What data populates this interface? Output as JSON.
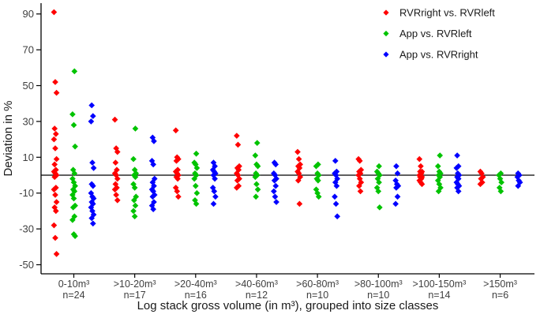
{
  "figure": {
    "background": "#ffffff",
    "axis_color": "#000000",
    "tick_text_color": "#3f3f3f",
    "title_text_color": "#1a1a1a"
  },
  "chart_data": {
    "type": "scatter",
    "title": "",
    "xlabel": "Log stack gross volume (in m³), grouped into size classes",
    "ylabel": "Deviation in %",
    "ylim": [
      -55,
      96
    ],
    "y_ticks": [
      90,
      70,
      50,
      30,
      10,
      -10,
      -30,
      -50
    ],
    "reference_line_y": 0,
    "grid": false,
    "legend_position": "top-right",
    "categories": [
      {
        "label": "0-10m³",
        "n_label": "n=24"
      },
      {
        "label": ">10-20m³",
        "n_label": "n=17"
      },
      {
        "label": ">20-40m³",
        "n_label": "n=16"
      },
      {
        "label": ">40-60m³",
        "n_label": "n=12"
      },
      {
        "label": ">60-80m³",
        "n_label": "n=10"
      },
      {
        "label": ">80-100m³",
        "n_label": "n=10"
      },
      {
        "label": ">100-150m³",
        "n_label": "n=14"
      },
      {
        "label": ">150m³",
        "n_label": "n=6"
      }
    ],
    "series": [
      {
        "name": "RVRright vs. RVRleft",
        "color": "#ff0000",
        "marker": "diamond",
        "values_by_category": [
          [
            91,
            52,
            46,
            26,
            23,
            20,
            15,
            9,
            6,
            3,
            2,
            1,
            0,
            -1,
            -7,
            -8,
            -11,
            -15,
            -18,
            -20,
            -28,
            -35,
            -44
          ],
          [
            31,
            15,
            13,
            7,
            3,
            1,
            0,
            -2,
            -5,
            -7,
            -8,
            -11,
            -14
          ],
          [
            25,
            10,
            9,
            8,
            3,
            2,
            1,
            0,
            -1,
            -2,
            -7,
            -9,
            -12
          ],
          [
            22,
            17,
            5,
            4,
            3,
            1,
            0,
            -2,
            -3,
            -6,
            -7
          ],
          [
            13,
            9,
            6,
            5,
            4,
            2,
            1,
            -1,
            -3,
            -16
          ],
          [
            9,
            8,
            3,
            2,
            1,
            0,
            -2,
            -4,
            -6,
            -9
          ],
          [
            9,
            5,
            2,
            2,
            1,
            0,
            0,
            -1,
            -1,
            -2,
            -3,
            -4,
            -5
          ],
          [
            2,
            1,
            -1,
            -2,
            -4,
            -5
          ]
        ]
      },
      {
        "name": "App vs. RVRleft",
        "color": "#00c300",
        "marker": "diamond",
        "values_by_category": [
          [
            58,
            34,
            28,
            16,
            3,
            1,
            -2,
            -4,
            -6,
            -8,
            -9,
            -11,
            -13,
            -17,
            -18,
            -23,
            -25,
            -33,
            -34
          ],
          [
            26,
            9,
            3,
            1,
            0,
            -1,
            -5,
            -7,
            -12,
            -14,
            -17,
            -20,
            -23
          ],
          [
            12,
            7,
            6,
            4,
            1,
            0,
            -2,
            -6,
            -10,
            -14,
            -16
          ],
          [
            18,
            11,
            6,
            5,
            1,
            0,
            -1,
            -5,
            -8,
            -12
          ],
          [
            6,
            5,
            1,
            0,
            -2,
            -3,
            -8,
            -10,
            -12
          ],
          [
            5,
            2,
            1,
            0,
            -2,
            -4,
            -7,
            -9,
            -18
          ],
          [
            11,
            5,
            2,
            1,
            0,
            -1,
            -3,
            -5,
            -7,
            -9
          ],
          [
            1,
            0,
            -2,
            -4,
            -7,
            -9
          ]
        ]
      },
      {
        "name": "App vs. RVRright",
        "color": "#0000ff",
        "marker": "diamond",
        "values_by_category": [
          [
            39,
            33,
            30,
            7,
            4,
            -5,
            -6,
            -10,
            -12,
            -13,
            -15,
            -16,
            -18,
            -20,
            -22,
            -24,
            -27
          ],
          [
            21,
            19,
            8,
            6,
            -2,
            -4,
            -6,
            -8,
            -9,
            -11,
            -12,
            -15,
            -17,
            -19
          ],
          [
            7,
            5,
            3,
            2,
            1,
            0,
            -2,
            -7,
            -9,
            -12,
            -16
          ],
          [
            7,
            6,
            1,
            0,
            -2,
            -3,
            -6,
            -9,
            -12,
            -15
          ],
          [
            8,
            2,
            1,
            0,
            -2,
            -4,
            -6,
            -12,
            -16,
            -23
          ],
          [
            5,
            1,
            -3,
            -5,
            -6,
            -7,
            -12,
            -16
          ],
          [
            11,
            5,
            4,
            1,
            0,
            -1,
            -2,
            -4,
            -5,
            -6,
            -7,
            -9
          ],
          [
            1,
            0,
            -1,
            -3,
            -4,
            -6
          ]
        ]
      }
    ]
  }
}
